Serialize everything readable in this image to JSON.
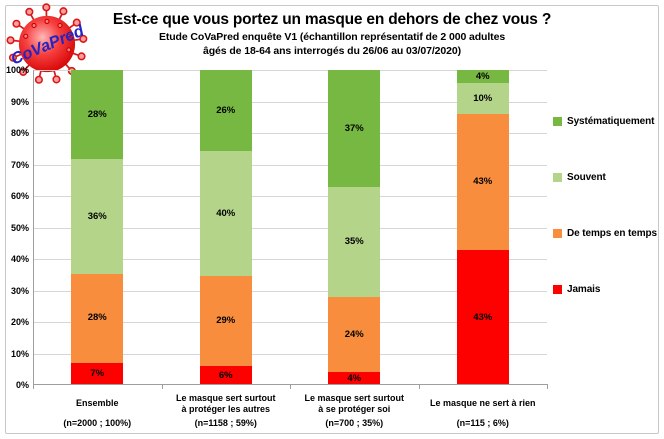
{
  "logo": {
    "text": "CoVaPred",
    "text_color": "#2424c4",
    "ball_color": "#e60000"
  },
  "chart_data": {
    "type": "bar",
    "stacked": true,
    "title": "Est-ce que vous portez un masque en dehors de chez vous ?",
    "subtitle_lines": [
      "Etude CoVaPred enquête V1 (échantillon représentatif de 2 000 adultes",
      "âgés de 18-64 ans interrogés du 26/06 au 03/07/2020)"
    ],
    "xlabel": "",
    "ylabel": "",
    "ylim": [
      0,
      100
    ],
    "grid": true,
    "legend_position": "right",
    "y_ticks": [
      "0%",
      "10%",
      "20%",
      "30%",
      "40%",
      "50%",
      "60%",
      "70%",
      "80%",
      "90%",
      "100%"
    ],
    "categories": [
      {
        "name_lines": [
          "Ensemble"
        ],
        "n": "(n=2000 ; 100%)"
      },
      {
        "name_lines": [
          "Le masque sert surtout",
          "à protéger les autres"
        ],
        "n": "(n=1158 ; 59%)"
      },
      {
        "name_lines": [
          "Le masque sert surtout",
          "à se protéger soi"
        ],
        "n": "(n=700 ; 35%)"
      },
      {
        "name_lines": [
          "Le masque ne sert à rien"
        ],
        "n": "(n=115 ; 6%)"
      }
    ],
    "series": [
      {
        "name": "Systématiquement",
        "color": "#77b843",
        "values": [
          28,
          26,
          37,
          4
        ]
      },
      {
        "name": "Souvent",
        "color": "#b3d489",
        "values": [
          36,
          40,
          35,
          10
        ]
      },
      {
        "name": "De temps en temps",
        "color": "#f78d3d",
        "values": [
          28,
          29,
          24,
          43
        ]
      },
      {
        "name": "Jamais",
        "color": "#fd0000",
        "values": [
          7,
          6,
          4,
          43
        ]
      }
    ]
  }
}
